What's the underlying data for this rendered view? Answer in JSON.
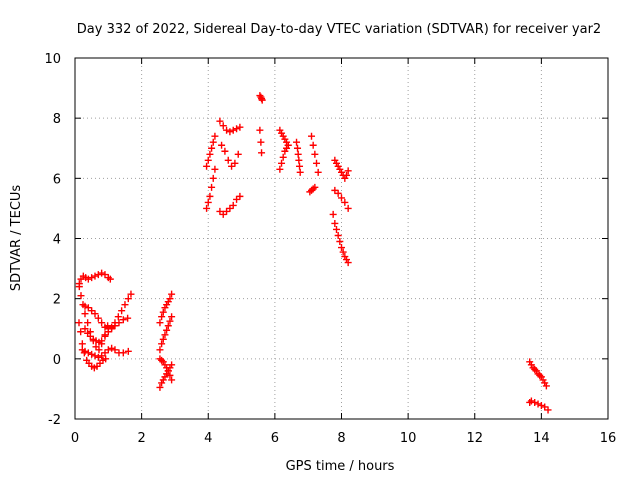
{
  "chart_data": {
    "type": "scatter",
    "title": "Day 332 of 2022, Sidereal Day-to-day VTEC variation (SDTVAR) for receiver yar2",
    "xlabel": "GPS time / hours",
    "ylabel": "SDTVAR / TECUs",
    "xlim": [
      0,
      16
    ],
    "ylim": [
      -2,
      10
    ],
    "xticks": [
      0,
      2,
      4,
      6,
      8,
      10,
      12,
      14,
      16
    ],
    "yticks": [
      -2,
      0,
      2,
      4,
      6,
      8,
      10
    ],
    "xtick_labels": [
      "0",
      "2",
      "4",
      "6",
      "8",
      "10",
      "12",
      "14",
      "16"
    ],
    "ytick_labels": [
      "-2",
      "0",
      "2",
      "4",
      "6",
      "8",
      "10"
    ],
    "grid": true,
    "marker": "+",
    "color": "#ff0000",
    "series": [
      {
        "name": "t0_2",
        "x": [
          0.13,
          0.18,
          0.25,
          0.32,
          0.4,
          0.5,
          0.6,
          0.7,
          0.8,
          0.9,
          1.0,
          1.06
        ],
        "y": [
          2.5,
          2.65,
          2.75,
          2.7,
          2.65,
          2.7,
          2.75,
          2.8,
          2.85,
          2.8,
          2.7,
          2.65
        ]
      },
      {
        "name": "t0_3",
        "x": [
          0.13,
          0.18,
          0.24,
          0.3,
          0.38,
          0.46,
          0.55,
          0.63,
          0.72,
          0.8,
          0.9,
          0.98
        ],
        "y": [
          2.4,
          2.1,
          1.8,
          1.5,
          1.2,
          0.9,
          0.6,
          0.4,
          0.3,
          0.5,
          0.8,
          1.1
        ]
      },
      {
        "name": "t0_4",
        "x": [
          0.3,
          0.4,
          0.5,
          0.6,
          0.7,
          0.8,
          0.9,
          1.0,
          1.1,
          1.2,
          1.3,
          1.4,
          1.5,
          1.6,
          1.68
        ],
        "y": [
          1.75,
          1.7,
          1.6,
          1.5,
          1.35,
          1.2,
          1.05,
          1.0,
          1.05,
          1.2,
          1.4,
          1.6,
          1.8,
          2.0,
          2.15
        ]
      },
      {
        "name": "t0_5",
        "x": [
          0.3,
          0.38,
          0.46,
          0.55,
          0.63,
          0.72,
          0.8,
          0.9,
          1.0,
          1.1,
          1.2,
          1.32,
          1.45,
          1.58
        ],
        "y": [
          1.0,
          0.85,
          0.75,
          0.65,
          0.6,
          0.55,
          0.6,
          0.75,
          0.9,
          1.0,
          1.1,
          1.2,
          1.3,
          1.35
        ]
      },
      {
        "name": "t0_6",
        "x": [
          0.12,
          0.17,
          0.22,
          0.28,
          0.35,
          0.42,
          0.5,
          0.58,
          0.66,
          0.75,
          0.84,
          0.92
        ],
        "y": [
          1.2,
          0.9,
          0.5,
          0.2,
          -0.05,
          -0.15,
          -0.25,
          -0.3,
          -0.25,
          -0.15,
          -0.05,
          0.0
        ]
      },
      {
        "name": "t0_7",
        "x": [
          0.22,
          0.3,
          0.4,
          0.5,
          0.6,
          0.7,
          0.8,
          0.9,
          1.0,
          1.1,
          1.2,
          1.32,
          1.45,
          1.6
        ],
        "y": [
          0.3,
          0.25,
          0.2,
          0.15,
          0.1,
          0.05,
          0.1,
          0.2,
          0.3,
          0.35,
          0.3,
          0.2,
          0.2,
          0.25
        ]
      },
      {
        "name": "t2_1",
        "x": [
          2.55,
          2.6,
          2.65,
          2.7,
          2.75,
          2.8,
          2.85,
          2.9
        ],
        "y": [
          -0.95,
          -0.8,
          -0.7,
          -0.6,
          -0.5,
          -0.4,
          -0.3,
          -0.2
        ]
      },
      {
        "name": "t2_2",
        "x": [
          2.55,
          2.6,
          2.65,
          2.7,
          2.75,
          2.8,
          2.85,
          2.9
        ],
        "y": [
          0.0,
          -0.05,
          -0.1,
          -0.2,
          -0.3,
          -0.4,
          -0.55,
          -0.7
        ]
      },
      {
        "name": "t2_3",
        "x": [
          2.55,
          2.6,
          2.65,
          2.7,
          2.75,
          2.8,
          2.85,
          2.9
        ],
        "y": [
          1.2,
          1.4,
          1.55,
          1.7,
          1.8,
          1.9,
          2.0,
          2.15
        ]
      },
      {
        "name": "t2_4",
        "x": [
          2.55,
          2.6,
          2.65,
          2.7,
          2.75,
          2.8,
          2.85,
          2.9
        ],
        "y": [
          0.3,
          0.5,
          0.65,
          0.8,
          0.95,
          1.1,
          1.25,
          1.4
        ]
      },
      {
        "name": "t4_1",
        "x": [
          3.95,
          4.0,
          4.05,
          4.1,
          4.15,
          4.2
        ],
        "y": [
          5.0,
          5.2,
          5.4,
          5.7,
          6.0,
          6.3
        ]
      },
      {
        "name": "t4_2",
        "x": [
          3.95,
          4.0,
          4.05,
          4.1,
          4.15,
          4.2
        ],
        "y": [
          6.4,
          6.6,
          6.8,
          7.0,
          7.2,
          7.4
        ]
      },
      {
        "name": "t4_3",
        "x": [
          4.35,
          4.45,
          4.55,
          4.65,
          4.75,
          4.85,
          4.95
        ],
        "y": [
          4.9,
          4.8,
          4.9,
          5.0,
          5.1,
          5.3,
          5.4
        ]
      },
      {
        "name": "t4_4",
        "x": [
          4.35,
          4.45,
          4.55,
          4.65,
          4.75,
          4.85,
          4.95
        ],
        "y": [
          7.9,
          7.75,
          7.6,
          7.55,
          7.6,
          7.65,
          7.7
        ]
      },
      {
        "name": "t4_5",
        "x": [
          4.4,
          4.5,
          4.6,
          4.7,
          4.8,
          4.9
        ],
        "y": [
          7.1,
          6.9,
          6.6,
          6.4,
          6.5,
          6.8
        ]
      },
      {
        "name": "t5_1",
        "x": [
          5.55,
          5.58,
          5.6,
          5.62
        ],
        "y": [
          8.75,
          8.7,
          8.65,
          8.6
        ]
      },
      {
        "name": "t5_2",
        "x": [
          5.55,
          5.58,
          5.6
        ],
        "y": [
          7.6,
          7.2,
          6.85
        ]
      },
      {
        "name": "t6_1",
        "x": [
          6.15,
          6.2,
          6.25,
          6.3,
          6.35,
          6.4
        ],
        "y": [
          7.6,
          7.5,
          7.4,
          7.3,
          7.2,
          7.1
        ]
      },
      {
        "name": "t6_2",
        "x": [
          6.15,
          6.2,
          6.25,
          6.3,
          6.35,
          6.4
        ],
        "y": [
          6.3,
          6.5,
          6.7,
          6.9,
          7.0,
          7.1
        ]
      },
      {
        "name": "t6_3",
        "x": [
          6.65,
          6.68,
          6.7,
          6.72,
          6.74,
          6.76
        ],
        "y": [
          7.2,
          7.0,
          6.8,
          6.6,
          6.4,
          6.2
        ]
      },
      {
        "name": "t7_1",
        "x": [
          7.1,
          7.15,
          7.2,
          7.25,
          7.3
        ],
        "y": [
          7.4,
          7.1,
          6.8,
          6.5,
          6.2
        ]
      },
      {
        "name": "t7_2",
        "x": [
          7.05,
          7.1,
          7.15,
          7.2
        ],
        "y": [
          5.55,
          5.6,
          5.65,
          5.7
        ]
      },
      {
        "name": "t7_3",
        "x": [
          7.8,
          7.85,
          7.9,
          7.95,
          8.0,
          8.05,
          8.1,
          8.15,
          8.2
        ],
        "y": [
          6.6,
          6.5,
          6.4,
          6.3,
          6.2,
          6.1,
          6.0,
          6.1,
          6.25
        ]
      },
      {
        "name": "t7_4",
        "x": [
          7.8,
          7.9,
          8.0,
          8.1,
          8.2
        ],
        "y": [
          5.6,
          5.5,
          5.35,
          5.2,
          5.0
        ]
      },
      {
        "name": "t7_5",
        "x": [
          7.75,
          7.8,
          7.85,
          7.9,
          7.95,
          8.0,
          8.05,
          8.1,
          8.15,
          8.2
        ],
        "y": [
          4.8,
          4.5,
          4.3,
          4.1,
          3.9,
          3.7,
          3.55,
          3.4,
          3.3,
          3.2
        ]
      },
      {
        "name": "t13_1",
        "x": [
          13.65,
          13.7,
          13.75,
          13.8,
          13.85,
          13.9,
          13.95,
          14.0,
          14.05,
          14.1,
          14.15
        ],
        "y": [
          -0.1,
          -0.2,
          -0.3,
          -0.35,
          -0.4,
          -0.5,
          -0.55,
          -0.6,
          -0.7,
          -0.8,
          -0.9
        ]
      },
      {
        "name": "t13_2",
        "x": [
          13.65,
          13.7,
          13.8,
          13.9,
          14.0,
          14.1,
          14.2
        ],
        "y": [
          -1.45,
          -1.4,
          -1.45,
          -1.5,
          -1.55,
          -1.6,
          -1.7
        ]
      }
    ]
  }
}
